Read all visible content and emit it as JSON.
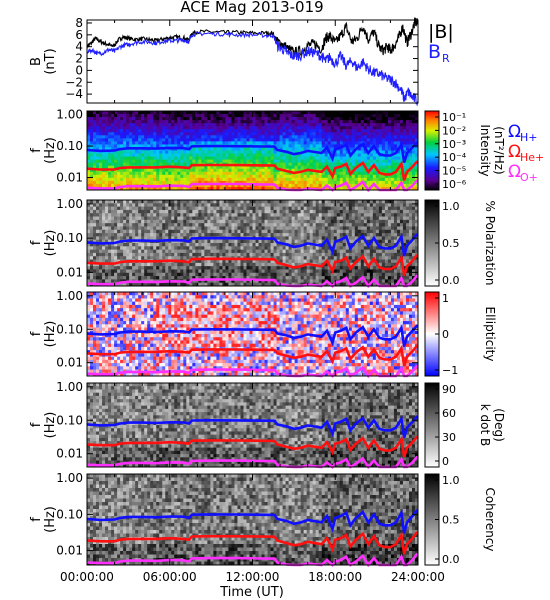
{
  "title": "ACE Mag 2013-019",
  "legend": {
    "b_total": "|B|",
    "b_radial": "B",
    "b_radial_sub": "R",
    "omega": "Ω",
    "h_sub": "H+",
    "he_sub": "He+",
    "o_sub": "O+"
  },
  "colors": {
    "h": "#1010ff",
    "he": "#ff1010",
    "o": "#ff30ff",
    "b_total": "#000000",
    "b_radial": "#2020ff"
  },
  "x_axis": {
    "label": "Time (UT)",
    "ticks": [
      {
        "hour": 0,
        "label": "00:00:00"
      },
      {
        "hour": 6,
        "label": "06:00:00"
      },
      {
        "hour": 12,
        "label": "12:00:00"
      },
      {
        "hour": 18,
        "label": "18:00:00"
      },
      {
        "hour": 24,
        "label": "24:00:00"
      }
    ]
  },
  "chart_data": [
    {
      "id": "b",
      "type": "line",
      "ylabel": "B",
      "ylabel2": "(nT)",
      "ylim": [
        -5.5,
        8.5
      ],
      "xlim": [
        0,
        24
      ],
      "yticks": [
        {
          "v": 8,
          "label": "8"
        },
        {
          "v": 6,
          "label": "6"
        },
        {
          "v": 4,
          "label": "4"
        },
        {
          "v": 2,
          "label": "2"
        },
        {
          "v": 0,
          "label": "0"
        },
        {
          "v": -2,
          "label": "−2"
        },
        {
          "v": -4,
          "label": "−4"
        }
      ],
      "series": [
        {
          "name": "|B|",
          "color": "#000000",
          "points": [
            [
              0,
              4.0
            ],
            [
              0.3,
              4.6
            ],
            [
              0.6,
              5.4
            ],
            [
              0.9,
              5.0
            ],
            [
              1.2,
              4.6
            ],
            [
              1.5,
              4.4
            ],
            [
              1.8,
              4.1
            ],
            [
              2.0,
              4.3
            ],
            [
              2.3,
              5.2
            ],
            [
              2.6,
              5.6
            ],
            [
              3.0,
              5.4
            ],
            [
              3.5,
              5.2
            ],
            [
              4.0,
              5.3
            ],
            [
              4.5,
              5.2
            ],
            [
              5.0,
              5.0
            ],
            [
              5.5,
              5.3
            ],
            [
              6.0,
              5.5
            ],
            [
              6.5,
              5.6
            ],
            [
              7.0,
              5.5
            ],
            [
              7.4,
              5.1
            ],
            [
              7.6,
              6.3
            ],
            [
              8.0,
              6.5
            ],
            [
              9.0,
              6.5
            ],
            [
              10.0,
              6.4
            ],
            [
              11.0,
              6.4
            ],
            [
              12.0,
              6.3
            ],
            [
              13.0,
              6.3
            ],
            [
              13.5,
              6.2
            ],
            [
              13.8,
              4.8
            ],
            [
              14.2,
              4.4
            ],
            [
              14.6,
              3.6
            ],
            [
              15.0,
              3.0
            ],
            [
              15.5,
              3.2
            ],
            [
              16.0,
              4.2
            ],
            [
              16.5,
              4.5
            ],
            [
              17.0,
              3.6
            ],
            [
              17.3,
              5.4
            ],
            [
              17.6,
              5.8
            ],
            [
              18.0,
              4.6
            ],
            [
              18.4,
              5.9
            ],
            [
              18.8,
              7.3
            ],
            [
              19.2,
              4.8
            ],
            [
              19.6,
              5.4
            ],
            [
              20.0,
              7.6
            ],
            [
              20.4,
              5.2
            ],
            [
              20.8,
              6.5
            ],
            [
              21.2,
              3.8
            ],
            [
              21.5,
              3.4
            ],
            [
              21.8,
              4.0
            ],
            [
              22.0,
              3.4
            ],
            [
              22.3,
              4.2
            ],
            [
              22.6,
              5.5
            ],
            [
              22.9,
              7.4
            ],
            [
              23.2,
              4.6
            ],
            [
              23.5,
              6.2
            ],
            [
              23.8,
              8.2
            ],
            [
              24.0,
              7.8
            ]
          ]
        },
        {
          "name": "B_R",
          "color": "#2020ff",
          "points": [
            [
              0,
              3.2
            ],
            [
              0.4,
              3.4
            ],
            [
              0.8,
              2.8
            ],
            [
              1.2,
              3.0
            ],
            [
              1.6,
              3.5
            ],
            [
              2.0,
              3.2
            ],
            [
              2.4,
              4.0
            ],
            [
              2.8,
              4.3
            ],
            [
              3.2,
              4.5
            ],
            [
              3.8,
              4.8
            ],
            [
              4.5,
              4.8
            ],
            [
              5.0,
              4.6
            ],
            [
              5.5,
              4.9
            ],
            [
              6.0,
              5.0
            ],
            [
              6.5,
              5.0
            ],
            [
              7.0,
              5.1
            ],
            [
              7.4,
              4.9
            ],
            [
              7.6,
              6.0
            ],
            [
              8.0,
              6.2
            ],
            [
              9.0,
              6.2
            ],
            [
              10.0,
              6.1
            ],
            [
              11.0,
              6.0
            ],
            [
              12.0,
              6.0
            ],
            [
              13.0,
              5.9
            ],
            [
              13.5,
              5.9
            ],
            [
              13.8,
              4.2
            ],
            [
              14.2,
              3.6
            ],
            [
              14.6,
              2.8
            ],
            [
              15.0,
              2.4
            ],
            [
              15.5,
              2.6
            ],
            [
              16.0,
              3.2
            ],
            [
              16.5,
              3.0
            ],
            [
              17.0,
              2.4
            ],
            [
              17.3,
              1.6
            ],
            [
              17.6,
              2.2
            ],
            [
              18.0,
              1.2
            ],
            [
              18.4,
              2.4
            ],
            [
              18.8,
              0.8
            ],
            [
              19.2,
              1.6
            ],
            [
              19.6,
              0.4
            ],
            [
              20.0,
              1.4
            ],
            [
              20.4,
              0.2
            ],
            [
              20.8,
              -0.4
            ],
            [
              21.2,
              -0.6
            ],
            [
              21.6,
              -1.2
            ],
            [
              22.0,
              -1.6
            ],
            [
              22.4,
              -2.2
            ],
            [
              22.8,
              -3.4
            ],
            [
              23.0,
              -4.8
            ],
            [
              23.3,
              -3.6
            ],
            [
              23.6,
              -4.6
            ],
            [
              24.0,
              -5.2
            ]
          ]
        }
      ]
    },
    {
      "id": "intensity",
      "type": "heatmap",
      "ylabel": "f",
      "ylabel2": "(Hz)",
      "ylim": [
        0.004,
        1.3
      ],
      "xlim": [
        0,
        24
      ],
      "colorbar": {
        "label": "Intensity",
        "label2": "(nT²/Hz)",
        "ticks": [
          "10⁻¹",
          "10⁻²",
          "10⁻³",
          "10⁻⁴",
          "10⁻⁵",
          "10⁻⁶"
        ]
      }
    },
    {
      "id": "polarization",
      "type": "heatmap",
      "ylabel": "f",
      "ylabel2": "(Hz)",
      "ylim": [
        0.004,
        1.3
      ],
      "xlim": [
        0,
        24
      ],
      "colorbar": {
        "label": "% Polarization",
        "ticks": [
          "1.0",
          "0.5",
          "0.0"
        ]
      }
    },
    {
      "id": "ellipticity",
      "type": "heatmap",
      "ylabel": "f",
      "ylabel2": "(Hz)",
      "ylim": [
        0.004,
        1.3
      ],
      "xlim": [
        0,
        24
      ],
      "colorbar": {
        "label": "Ellipticity",
        "ticks": [
          "1",
          "0",
          "−1"
        ]
      }
    },
    {
      "id": "kdotb",
      "type": "heatmap",
      "ylabel": "f",
      "ylabel2": "(Hz)",
      "ylim": [
        0.004,
        1.3
      ],
      "xlim": [
        0,
        24
      ],
      "colorbar": {
        "label": "k dot B",
        "label2": "(Deg)",
        "ticks": [
          "90",
          "60",
          "30",
          "0"
        ]
      }
    },
    {
      "id": "coherency",
      "type": "heatmap",
      "ylabel": "f",
      "ylabel2": "(Hz)",
      "ylim": [
        0.004,
        1.3
      ],
      "xlim": [
        0,
        24
      ],
      "colorbar": {
        "label": "Coherency",
        "ticks": [
          "1.0",
          "0.5",
          "0.0"
        ]
      }
    }
  ],
  "freq_ticks": [
    {
      "f": 1.0,
      "label": "1.00"
    },
    {
      "f": 0.1,
      "label": "0.10"
    },
    {
      "f": 0.01,
      "label": "0.01"
    }
  ],
  "gyrofrequencies": {
    "h": [
      [
        0,
        0.075
      ],
      [
        1,
        0.07
      ],
      [
        2,
        0.072
      ],
      [
        2.4,
        0.08
      ],
      [
        3,
        0.085
      ],
      [
        4,
        0.085
      ],
      [
        5,
        0.083
      ],
      [
        6,
        0.087
      ],
      [
        7,
        0.086
      ],
      [
        7.4,
        0.08
      ],
      [
        7.6,
        0.098
      ],
      [
        9,
        0.1
      ],
      [
        11,
        0.099
      ],
      [
        13,
        0.097
      ],
      [
        13.6,
        0.096
      ],
      [
        13.8,
        0.075
      ],
      [
        14.5,
        0.065
      ],
      [
        15,
        0.055
      ],
      [
        15.5,
        0.06
      ],
      [
        16,
        0.07
      ],
      [
        17,
        0.06
      ],
      [
        17.4,
        0.09
      ],
      [
        17.8,
        0.04
      ],
      [
        18,
        0.08
      ],
      [
        18.4,
        0.09
      ],
      [
        18.8,
        0.11
      ],
      [
        19.1,
        0.05
      ],
      [
        19.5,
        0.08
      ],
      [
        20,
        0.115
      ],
      [
        20.4,
        0.06
      ],
      [
        20.8,
        0.1
      ],
      [
        21.2,
        0.055
      ],
      [
        21.6,
        0.05
      ],
      [
        22,
        0.05
      ],
      [
        22.4,
        0.06
      ],
      [
        22.8,
        0.11
      ],
      [
        23,
        0.03
      ],
      [
        23.2,
        0.06
      ],
      [
        23.6,
        0.09
      ],
      [
        23.9,
        0.125
      ],
      [
        24,
        0.12
      ]
    ],
    "he": [
      [
        0,
        0.019
      ],
      [
        1,
        0.018
      ],
      [
        2,
        0.018
      ],
      [
        2.4,
        0.02
      ],
      [
        3,
        0.021
      ],
      [
        4,
        0.021
      ],
      [
        5,
        0.021
      ],
      [
        6,
        0.022
      ],
      [
        7,
        0.021
      ],
      [
        7.4,
        0.02
      ],
      [
        7.6,
        0.0245
      ],
      [
        9,
        0.025
      ],
      [
        11,
        0.0248
      ],
      [
        13,
        0.0243
      ],
      [
        13.6,
        0.024
      ],
      [
        13.8,
        0.019
      ],
      [
        14.5,
        0.016
      ],
      [
        15,
        0.014
      ],
      [
        15.5,
        0.015
      ],
      [
        16,
        0.0175
      ],
      [
        17,
        0.015
      ],
      [
        17.4,
        0.022
      ],
      [
        17.8,
        0.011
      ],
      [
        18,
        0.02
      ],
      [
        18.4,
        0.022
      ],
      [
        18.8,
        0.027
      ],
      [
        19.1,
        0.013
      ],
      [
        19.5,
        0.02
      ],
      [
        20,
        0.029
      ],
      [
        20.4,
        0.015
      ],
      [
        20.8,
        0.025
      ],
      [
        21.2,
        0.014
      ],
      [
        21.6,
        0.0125
      ],
      [
        22,
        0.0125
      ],
      [
        22.4,
        0.015
      ],
      [
        22.8,
        0.027
      ],
      [
        23,
        0.008
      ],
      [
        23.2,
        0.015
      ],
      [
        23.6,
        0.022
      ],
      [
        23.9,
        0.031
      ],
      [
        24,
        0.03
      ]
    ],
    "o": [
      [
        0,
        0.0047
      ],
      [
        1,
        0.0045
      ],
      [
        2,
        0.0045
      ],
      [
        2.4,
        0.005
      ],
      [
        3,
        0.0053
      ],
      [
        4,
        0.0053
      ],
      [
        5,
        0.0052
      ],
      [
        6,
        0.0055
      ],
      [
        7,
        0.0054
      ],
      [
        7.4,
        0.005
      ],
      [
        7.6,
        0.0061
      ],
      [
        9,
        0.0062
      ],
      [
        11,
        0.0062
      ],
      [
        13,
        0.006
      ],
      [
        13.6,
        0.006
      ],
      [
        13.8,
        0.0047
      ],
      [
        14.5,
        0.0041
      ],
      [
        15,
        0.0035
      ],
      [
        15.5,
        0.0038
      ],
      [
        16,
        0.0044
      ],
      [
        17,
        0.0038
      ],
      [
        17.4,
        0.0055
      ],
      [
        17.8,
        0.0028
      ],
      [
        18,
        0.005
      ],
      [
        18.4,
        0.0055
      ],
      [
        18.8,
        0.0068
      ],
      [
        19.1,
        0.0033
      ],
      [
        19.5,
        0.005
      ],
      [
        20,
        0.0072
      ],
      [
        20.4,
        0.0038
      ],
      [
        20.8,
        0.0062
      ],
      [
        21.2,
        0.0035
      ],
      [
        21.6,
        0.0031
      ],
      [
        22,
        0.0031
      ],
      [
        22.4,
        0.0038
      ],
      [
        22.8,
        0.0068
      ],
      [
        23,
        0.002
      ],
      [
        23.2,
        0.0038
      ],
      [
        23.6,
        0.0055
      ],
      [
        23.9,
        0.0078
      ],
      [
        24,
        0.0075
      ]
    ]
  }
}
